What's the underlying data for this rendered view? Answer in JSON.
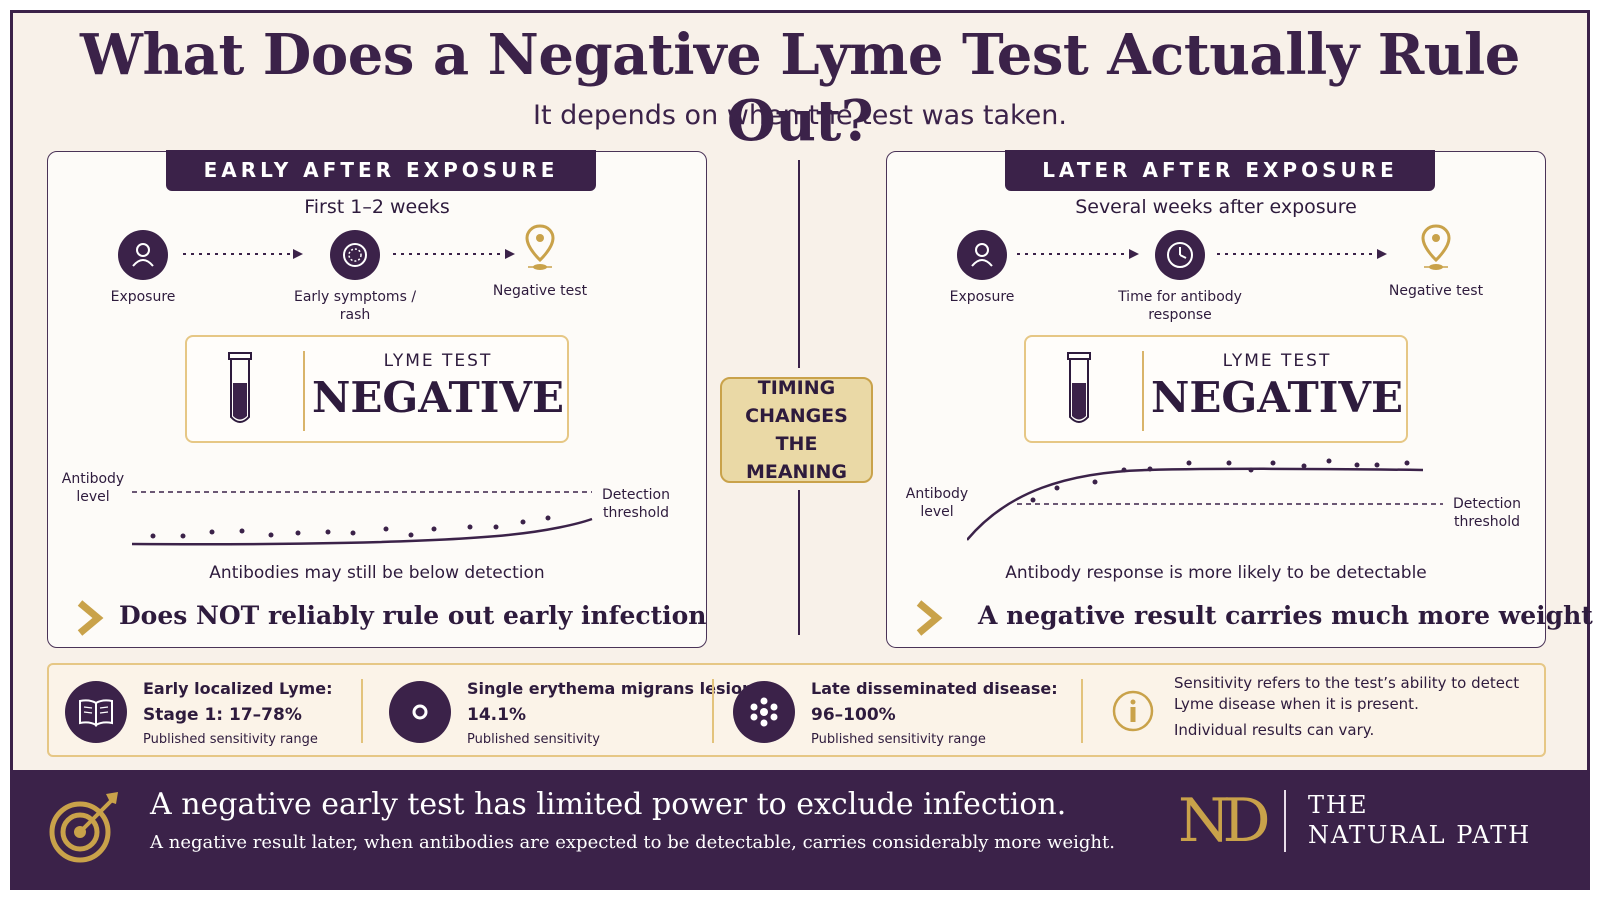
{
  "header": {
    "title": "What Does a Negative Lyme Test Actually Rule Out?",
    "subtitle": "It depends on when the test was taken."
  },
  "left_panel": {
    "heading": "EARLY AFTER EXPOSURE",
    "timeframe": "First 1–2 weeks",
    "steps": [
      {
        "label": "Exposure",
        "icon": "person-icon"
      },
      {
        "label": "Early symptoms / rash",
        "icon": "rash-icon"
      },
      {
        "label": "Negative test",
        "icon": "location-pin-icon"
      }
    ],
    "test_label": "LYME TEST",
    "test_result": "NEGATIVE",
    "chart": {
      "y_label": "Antibody level",
      "threshold_label": "Detection threshold",
      "caption": "Antibodies may still be below detection"
    },
    "conclusion": "Does NOT reliably rule out early infection"
  },
  "right_panel": {
    "heading": "LATER AFTER EXPOSURE",
    "timeframe": "Several weeks after exposure",
    "steps": [
      {
        "label": "Exposure",
        "icon": "person-icon"
      },
      {
        "label": "Time for antibody response",
        "icon": "clock-icon"
      },
      {
        "label": "Negative test",
        "icon": "location-pin-icon"
      }
    ],
    "test_label": "LYME TEST",
    "test_result": "NEGATIVE",
    "chart": {
      "y_label": "Antibody level",
      "threshold_label": "Detection threshold",
      "caption": "Antibody response is more likely to be detectable"
    },
    "conclusion": "A negative result carries much more weight"
  },
  "center_badge": {
    "line1": "TIMING",
    "line2": "CHANGES",
    "line3": "THE MEANING"
  },
  "stats": [
    {
      "title": "Early localized Lyme:",
      "value": "Stage 1: 17–78%",
      "note": "Published sensitivity range",
      "icon": "book-icon"
    },
    {
      "title": "Single erythema migrans lesion:",
      "value": "14.1%",
      "note": "Published sensitivity",
      "icon": "lesion-icon"
    },
    {
      "title": "Late disseminated disease:",
      "value": "96–100%",
      "note": "Published sensitivity range",
      "icon": "cells-icon"
    }
  ],
  "info": {
    "icon": "info-icon",
    "line1": "Sensitivity refers to the test’s ability to detect",
    "line2": "Lyme disease when it is present.",
    "line3": "Individual results can vary."
  },
  "banner": {
    "icon": "target-icon",
    "main": "A negative early test has limited power to exclude infection.",
    "sub": "A negative result later, when antibodies are expected to be detectable, carries considerably more weight."
  },
  "logo": {
    "mark": "ND",
    "line1": "THE",
    "line2": "NATURAL PATH"
  },
  "colors": {
    "primary": "#3b2249",
    "accent": "#c9a24a",
    "background": "#f8f1e9"
  }
}
